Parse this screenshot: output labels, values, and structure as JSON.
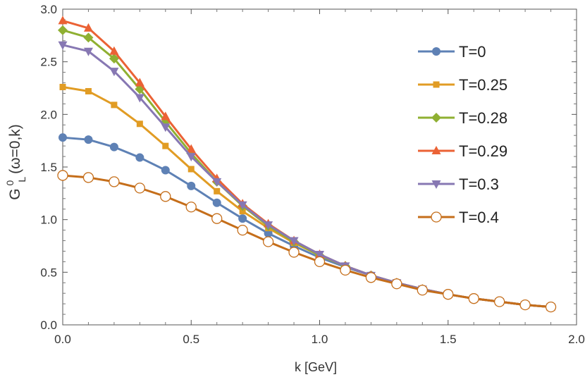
{
  "chart_data": {
    "type": "line",
    "title": "",
    "xlabel": "k [GeV]",
    "ylabel": {
      "base": "G",
      "superscript": "0",
      "subscript": "L",
      "argument": "(ω=0,k)"
    },
    "xlim": [
      0,
      2.0
    ],
    "ylim": [
      0,
      3.0
    ],
    "xticks": [
      "0.0",
      "0.5",
      "1.0",
      "1.5",
      "2.0"
    ],
    "yticks": [
      "0.0",
      "0.5",
      "1.0",
      "1.5",
      "2.0",
      "2.5",
      "3.0"
    ],
    "grid": false,
    "legend_position": "top-right",
    "x": [
      0.0,
      0.1,
      0.2,
      0.3,
      0.4,
      0.5,
      0.6,
      0.7,
      0.8,
      0.9,
      1.0,
      1.1,
      1.2,
      1.3,
      1.4,
      1.5,
      1.6,
      1.7,
      1.8,
      1.9
    ],
    "series": [
      {
        "name": "T=0",
        "color": "#5e81b5",
        "marker": "circle",
        "values": [
          1.78,
          1.76,
          1.69,
          1.59,
          1.47,
          1.32,
          1.16,
          1.01,
          0.87,
          0.75,
          0.64,
          0.55,
          0.47,
          0.4,
          0.34,
          0.29,
          0.25,
          0.22,
          0.19,
          0.17
        ]
      },
      {
        "name": "T=0.25",
        "color": "#e19c24",
        "marker": "square",
        "values": [
          2.26,
          2.22,
          2.09,
          1.91,
          1.7,
          1.48,
          1.27,
          1.08,
          0.92,
          0.78,
          0.66,
          0.56,
          0.47,
          0.4,
          0.34,
          0.29,
          0.25,
          0.22,
          0.19,
          0.17
        ]
      },
      {
        "name": "T=0.28",
        "color": "#8fb032",
        "marker": "diamond",
        "values": [
          2.8,
          2.73,
          2.53,
          2.24,
          1.93,
          1.63,
          1.36,
          1.13,
          0.94,
          0.79,
          0.66,
          0.56,
          0.47,
          0.4,
          0.34,
          0.29,
          0.25,
          0.22,
          0.19,
          0.17
        ]
      },
      {
        "name": "T=0.29",
        "color": "#eb6235",
        "marker": "triangle-up",
        "values": [
          2.89,
          2.82,
          2.6,
          2.3,
          1.98,
          1.67,
          1.39,
          1.15,
          0.96,
          0.8,
          0.67,
          0.56,
          0.47,
          0.4,
          0.34,
          0.29,
          0.25,
          0.22,
          0.19,
          0.17
        ]
      },
      {
        "name": "T=0.3",
        "color": "#8778b3",
        "marker": "triangle-down",
        "values": [
          2.66,
          2.6,
          2.41,
          2.16,
          1.88,
          1.6,
          1.36,
          1.14,
          0.95,
          0.8,
          0.67,
          0.56,
          0.47,
          0.4,
          0.34,
          0.29,
          0.25,
          0.22,
          0.19,
          0.17
        ]
      },
      {
        "name": "T=0.4",
        "color": "#c56e1a",
        "marker": "open-circle",
        "values": [
          1.42,
          1.4,
          1.36,
          1.3,
          1.22,
          1.12,
          1.01,
          0.9,
          0.79,
          0.69,
          0.6,
          0.52,
          0.45,
          0.39,
          0.33,
          0.29,
          0.25,
          0.22,
          0.19,
          0.17
        ]
      }
    ]
  }
}
